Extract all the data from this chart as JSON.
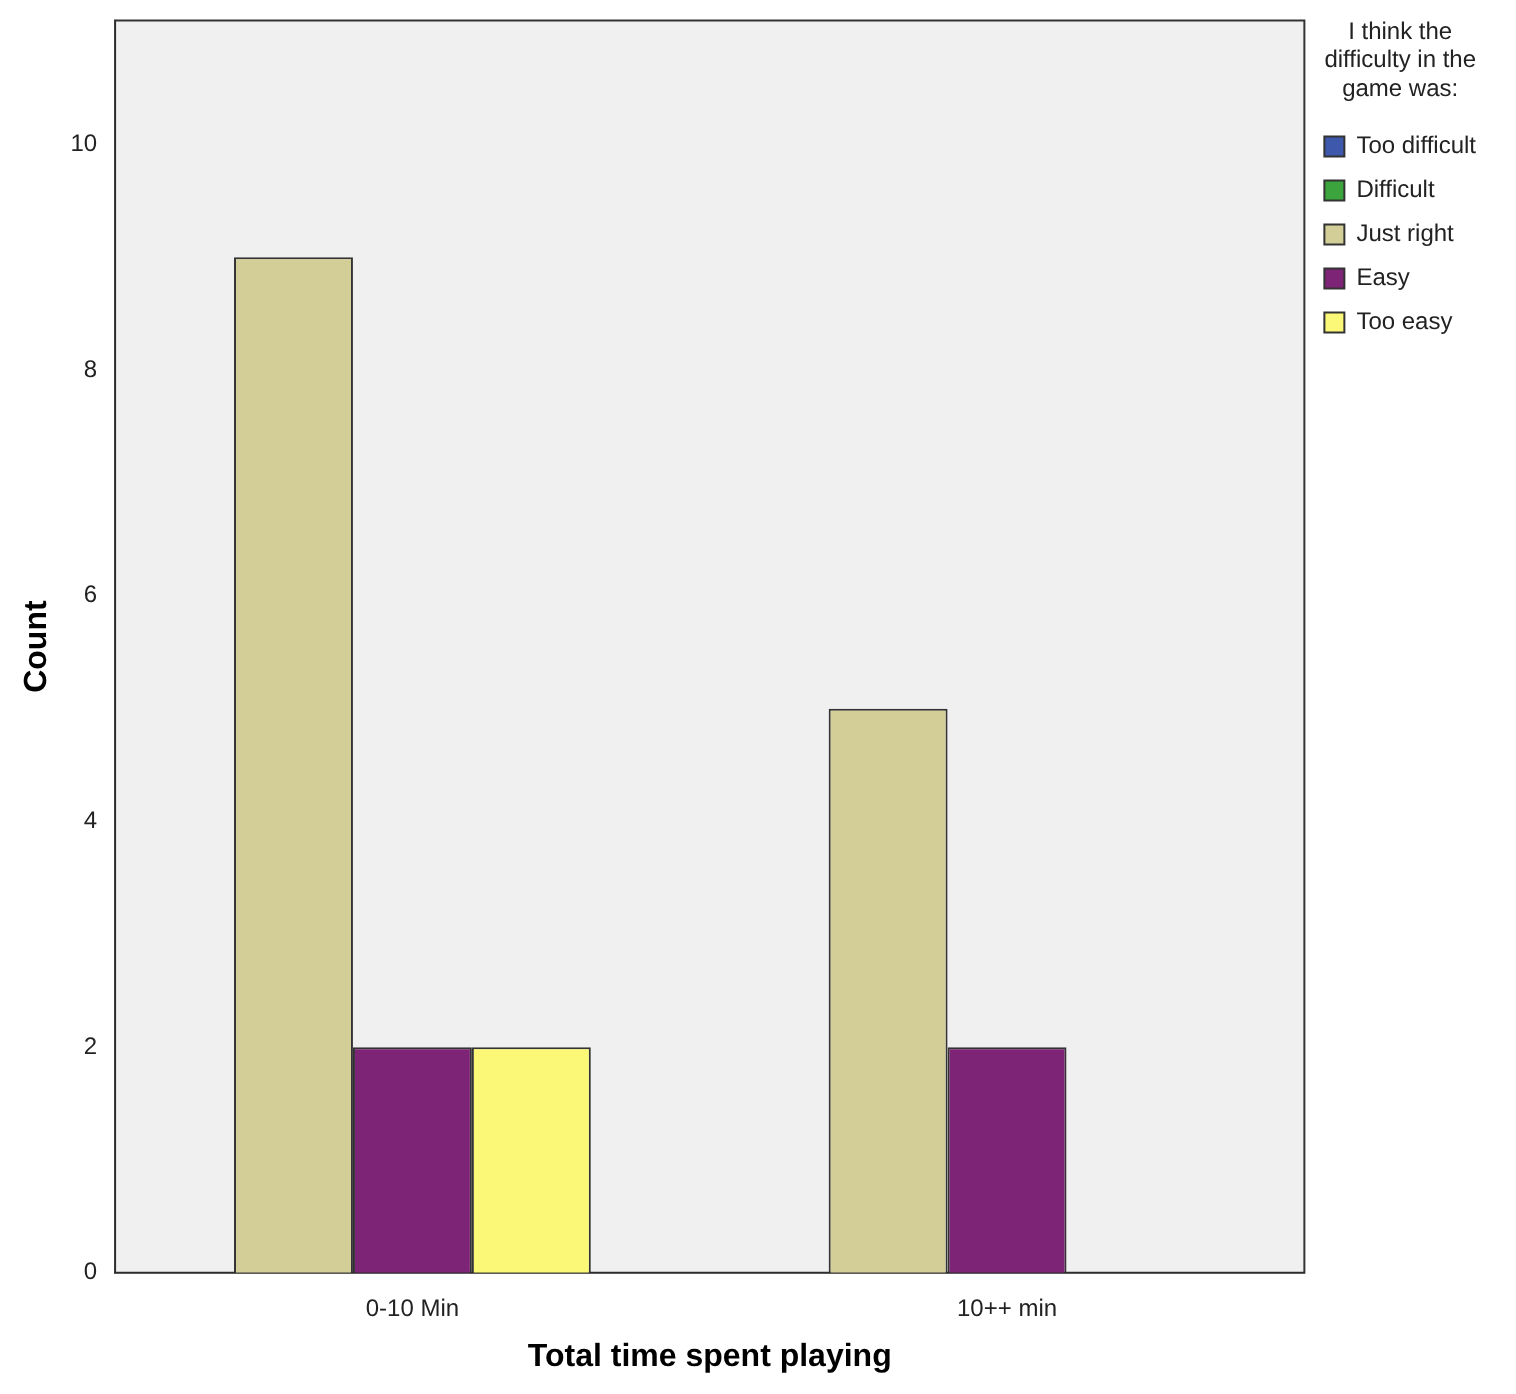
{
  "chart_data": {
    "type": "bar",
    "xlabel": "Total time spent playing",
    "ylabel": "Count",
    "legend_title": "I think the difficulty in the game was:",
    "categories": [
      "0-10 Min",
      "10++ min"
    ],
    "series": [
      {
        "name": "Too difficult",
        "color": "#3e58ac",
        "values": [
          null,
          null
        ]
      },
      {
        "name": "Difficult",
        "color": "#3ca43c",
        "values": [
          null,
          null
        ]
      },
      {
        "name": "Just right",
        "color": "#d3ce97",
        "values": [
          9,
          5
        ]
      },
      {
        "name": "Easy",
        "color": "#7d2476",
        "values": [
          2,
          2
        ]
      },
      {
        "name": "Too easy",
        "color": "#fbf877",
        "values": [
          2,
          null
        ]
      }
    ],
    "ylim": [
      0,
      11.1
    ],
    "yticks": [
      0,
      2,
      4,
      6,
      8,
      10
    ],
    "grid": false,
    "legend": "top right"
  }
}
